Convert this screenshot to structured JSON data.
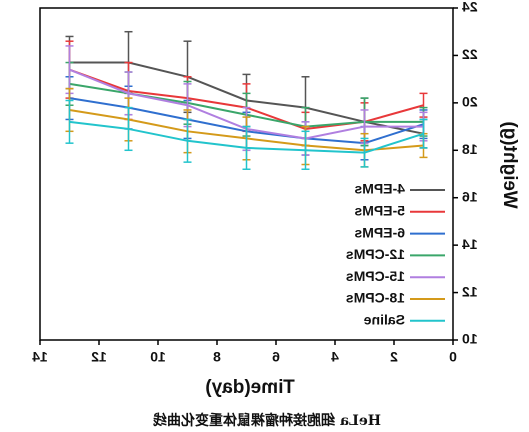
{
  "chart_data": {
    "type": "line",
    "x_label": "Time(day)",
    "y_label": "Weight(g)",
    "caption": "HeLa 细胞接种瘤裸鼠体重变化曲线",
    "x": [
      1,
      3,
      5,
      7,
      9,
      11,
      13
    ],
    "xlim": [
      0,
      14
    ],
    "xticks": [
      0,
      2,
      4,
      6,
      8,
      10,
      12,
      14
    ],
    "ylim": [
      10,
      24
    ],
    "yticks": [
      10,
      12,
      14,
      16,
      18,
      20,
      22,
      24
    ],
    "mirrored": true,
    "series": [
      {
        "name": "4-EPMs",
        "color": "#555555",
        "values": [
          18.7,
          19.2,
          19.8,
          20.1,
          21.1,
          21.7,
          21.7
        ],
        "errors": [
          0.6,
          1.0,
          1.3,
          1.1,
          1.5,
          1.3,
          1.1
        ]
      },
      {
        "name": "5-EPMs",
        "color": "#e8383a",
        "values": [
          19.9,
          19.2,
          18.9,
          19.8,
          20.2,
          20.5,
          21.4
        ],
        "errors": [
          0.5,
          0.8,
          0.7,
          1.0,
          0.9,
          1.2,
          1.2
        ]
      },
      {
        "name": "6-EPMs",
        "color": "#2f6fcf",
        "values": [
          19.1,
          18.3,
          18.5,
          18.8,
          19.3,
          19.8,
          20.2
        ],
        "errors": [
          0.6,
          0.7,
          0.7,
          0.8,
          0.8,
          0.9,
          0.9
        ]
      },
      {
        "name": "12-CPMs",
        "color": "#3aa66a",
        "values": [
          19.2,
          19.2,
          19.0,
          19.5,
          20.0,
          20.4,
          20.8
        ],
        "errors": [
          0.6,
          1.0,
          0.8,
          0.9,
          0.9,
          0.9,
          0.9
        ]
      },
      {
        "name": "15-CPMs",
        "color": "#b07fe0",
        "values": [
          19.0,
          19.0,
          18.5,
          18.9,
          19.9,
          20.4,
          21.4
        ],
        "errors": [
          0.6,
          0.7,
          0.7,
          0.9,
          0.9,
          0.9,
          1.0
        ]
      },
      {
        "name": "18-CPMs",
        "color": "#d49a1a",
        "values": [
          18.2,
          18.0,
          18.2,
          18.5,
          18.8,
          19.3,
          19.7
        ],
        "errors": [
          0.5,
          0.7,
          0.8,
          0.9,
          0.9,
          0.9,
          0.9
        ]
      },
      {
        "name": "Saline",
        "color": "#22c4cc",
        "values": [
          18.7,
          17.9,
          18.0,
          18.1,
          18.4,
          18.9,
          19.2
        ],
        "errors": [
          0.6,
          0.6,
          0.8,
          0.9,
          0.9,
          0.9,
          0.9
        ]
      }
    ]
  }
}
